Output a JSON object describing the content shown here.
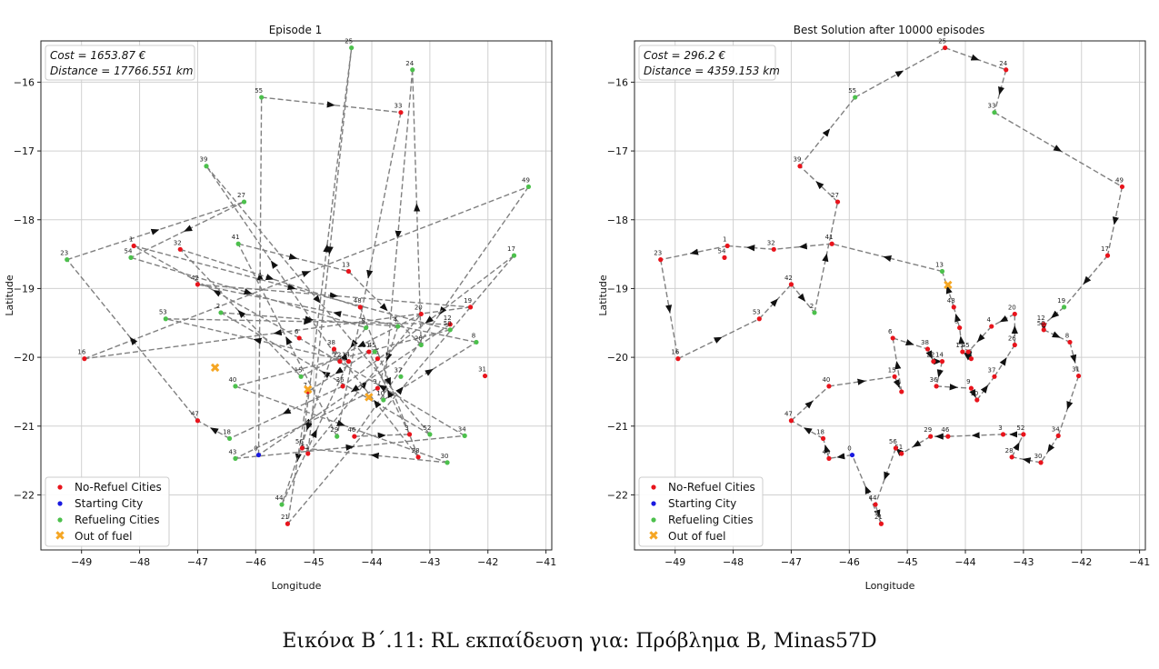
{
  "caption": "Εικόνα Β΄.11: RL εκπαίδευση για: Πρόβλημα Β, Minas57D",
  "colors": {
    "no_refuel": "#e8141c",
    "start": "#1a1ae0",
    "refuel": "#4cc04c",
    "out_of_fuel": "#f5a623",
    "route": "#808080"
  },
  "chart_data": [
    {
      "type": "scatter",
      "title": "Episode 1",
      "xlabel": "Longitude",
      "ylabel": "Latitude",
      "xlim": [
        -49.7,
        -40.9
      ],
      "ylim": [
        -22.8,
        -15.4
      ],
      "xticks": [
        -49,
        -48,
        -47,
        -46,
        -45,
        -44,
        -43,
        -42,
        -41
      ],
      "yticks": [
        -16,
        -17,
        -18,
        -19,
        -20,
        -21,
        -22
      ],
      "grid": true,
      "info": [
        "Cost = 1653.87 €",
        "Distance = 17766.551 km"
      ],
      "legend": {
        "placement": "lower-left",
        "entries": [
          "No-Refuel Cities",
          "Starting City",
          "Refueling Cities",
          "Out of fuel"
        ]
      },
      "nodes": [
        {
          "id": "0",
          "x": -45.95,
          "y": -21.42,
          "kind": "start"
        },
        {
          "id": "1",
          "x": -48.1,
          "y": -18.38,
          "kind": "no_refuel"
        },
        {
          "id": "2",
          "x": -46.6,
          "y": -19.35,
          "kind": "refuel"
        },
        {
          "id": "3",
          "x": -43.35,
          "y": -21.12,
          "kind": "no_refuel"
        },
        {
          "id": "4",
          "x": -43.55,
          "y": -19.55,
          "kind": "refuel"
        },
        {
          "id": "5",
          "x": -44.1,
          "y": -19.57,
          "kind": "refuel"
        },
        {
          "id": "6",
          "x": -45.25,
          "y": -19.72,
          "kind": "no_refuel"
        },
        {
          "id": "7",
          "x": -45.1,
          "y": -20.5,
          "kind": "no_refuel"
        },
        {
          "id": "8",
          "x": -42.2,
          "y": -19.78,
          "kind": "refuel"
        },
        {
          "id": "9",
          "x": -43.9,
          "y": -20.45,
          "kind": "no_refuel"
        },
        {
          "id": "10",
          "x": -43.8,
          "y": -20.62,
          "kind": "refuel"
        },
        {
          "id": "11",
          "x": -44.05,
          "y": -19.92,
          "kind": "no_refuel"
        },
        {
          "id": "12",
          "x": -42.65,
          "y": -19.52,
          "kind": "no_refuel"
        },
        {
          "id": "13",
          "x": -44.4,
          "y": -18.75,
          "kind": "no_refuel"
        },
        {
          "id": "14",
          "x": -44.4,
          "y": -20.06,
          "kind": "no_refuel"
        },
        {
          "id": "15",
          "x": -45.22,
          "y": -20.28,
          "kind": "refuel"
        },
        {
          "id": "16",
          "x": -48.95,
          "y": -20.02,
          "kind": "no_refuel"
        },
        {
          "id": "17",
          "x": -41.55,
          "y": -18.52,
          "kind": "refuel"
        },
        {
          "id": "18",
          "x": -46.45,
          "y": -21.18,
          "kind": "refuel"
        },
        {
          "id": "19",
          "x": -42.3,
          "y": -19.27,
          "kind": "no_refuel"
        },
        {
          "id": "20",
          "x": -43.15,
          "y": -19.37,
          "kind": "no_refuel"
        },
        {
          "id": "21",
          "x": -45.45,
          "y": -22.42,
          "kind": "no_refuel"
        },
        {
          "id": "22",
          "x": -44.55,
          "y": -20.06,
          "kind": "no_refuel"
        },
        {
          "id": "23",
          "x": -49.25,
          "y": -18.58,
          "kind": "refuel"
        },
        {
          "id": "24",
          "x": -43.3,
          "y": -15.82,
          "kind": "refuel"
        },
        {
          "id": "25",
          "x": -44.35,
          "y": -15.5,
          "kind": "refuel"
        },
        {
          "id": "26",
          "x": -43.15,
          "y": -19.82,
          "kind": "refuel"
        },
        {
          "id": "27",
          "x": -46.2,
          "y": -17.74,
          "kind": "refuel"
        },
        {
          "id": "28",
          "x": -43.2,
          "y": -21.45,
          "kind": "no_refuel"
        },
        {
          "id": "29",
          "x": -44.6,
          "y": -21.15,
          "kind": "refuel"
        },
        {
          "id": "30",
          "x": -42.7,
          "y": -21.53,
          "kind": "refuel"
        },
        {
          "id": "31",
          "x": -42.05,
          "y": -20.27,
          "kind": "no_refuel"
        },
        {
          "id": "32",
          "x": -47.3,
          "y": -18.43,
          "kind": "no_refuel"
        },
        {
          "id": "33",
          "x": -43.5,
          "y": -16.44,
          "kind": "no_refuel"
        },
        {
          "id": "34",
          "x": -42.4,
          "y": -21.14,
          "kind": "refuel"
        },
        {
          "id": "35",
          "x": -43.9,
          "y": -20.02,
          "kind": "no_refuel"
        },
        {
          "id": "36",
          "x": -44.5,
          "y": -20.42,
          "kind": "no_refuel"
        },
        {
          "id": "37",
          "x": -43.5,
          "y": -20.28,
          "kind": "refuel"
        },
        {
          "id": "38",
          "x": -44.65,
          "y": -19.88,
          "kind": "no_refuel"
        },
        {
          "id": "39",
          "x": -46.85,
          "y": -17.22,
          "kind": "refuel"
        },
        {
          "id": "40",
          "x": -46.35,
          "y": -20.42,
          "kind": "refuel"
        },
        {
          "id": "41",
          "x": -46.3,
          "y": -18.35,
          "kind": "refuel"
        },
        {
          "id": "42",
          "x": -47.0,
          "y": -18.94,
          "kind": "no_refuel"
        },
        {
          "id": "43",
          "x": -46.35,
          "y": -21.47,
          "kind": "refuel"
        },
        {
          "id": "44",
          "x": -45.55,
          "y": -22.14,
          "kind": "refuel"
        },
        {
          "id": "45",
          "x": -43.95,
          "y": -19.92,
          "kind": "refuel"
        },
        {
          "id": "46",
          "x": -44.3,
          "y": -21.15,
          "kind": "no_refuel"
        },
        {
          "id": "47",
          "x": -47.0,
          "y": -20.92,
          "kind": "no_refuel"
        },
        {
          "id": "48",
          "x": -44.2,
          "y": -19.27,
          "kind": "no_refuel"
        },
        {
          "id": "49",
          "x": -41.3,
          "y": -17.52,
          "kind": "refuel"
        },
        {
          "id": "50",
          "x": -42.65,
          "y": -19.6,
          "kind": "refuel"
        },
        {
          "id": "51",
          "x": -45.1,
          "y": -21.4,
          "kind": "no_refuel"
        },
        {
          "id": "52",
          "x": -43.0,
          "y": -21.12,
          "kind": "refuel"
        },
        {
          "id": "53",
          "x": -47.55,
          "y": -19.44,
          "kind": "refuel"
        },
        {
          "id": "54",
          "x": -48.15,
          "y": -18.55,
          "kind": "refuel"
        },
        {
          "id": "55",
          "x": -45.9,
          "y": -16.22,
          "kind": "refuel"
        },
        {
          "id": "56",
          "x": -45.2,
          "y": -21.32,
          "kind": "no_refuel"
        }
      ],
      "out_of_fuel": [
        {
          "x": -46.7,
          "y": -20.15
        },
        {
          "x": -45.1,
          "y": -20.47
        },
        {
          "x": -44.05,
          "y": -20.58
        }
      ],
      "route": [
        "0",
        "55",
        "33",
        "29",
        "41",
        "13",
        "26",
        "24",
        "10",
        "8",
        "42",
        "19",
        "16",
        "49",
        "46",
        "3",
        "11",
        "7",
        "21",
        "17",
        "36",
        "18",
        "47",
        "23",
        "27",
        "54",
        "5",
        "22",
        "39",
        "52",
        "2",
        "4",
        "9",
        "43",
        "34",
        "6",
        "1",
        "50",
        "40",
        "30",
        "56",
        "25",
        "51",
        "20",
        "15",
        "32",
        "48",
        "28",
        "38",
        "44",
        "14",
        "53",
        "12",
        "0"
      ]
    },
    {
      "type": "scatter",
      "title": "Best Solution after 10000 episodes",
      "xlabel": "Longitude",
      "ylabel": "Latitude",
      "xlim": [
        -49.7,
        -40.9
      ],
      "ylim": [
        -22.8,
        -15.4
      ],
      "xticks": [
        -49,
        -48,
        -47,
        -46,
        -45,
        -44,
        -43,
        -42,
        -41
      ],
      "yticks": [
        -16,
        -17,
        -18,
        -19,
        -20,
        -21,
        -22
      ],
      "grid": true,
      "info": [
        "Cost = 296.2 €",
        "Distance = 4359.153 km"
      ],
      "legend": {
        "placement": "lower-left",
        "entries": [
          "No-Refuel Cities",
          "Starting City",
          "Refueling Cities",
          "Out of fuel"
        ]
      },
      "nodes": [
        {
          "id": "0",
          "x": -45.95,
          "y": -21.42,
          "kind": "start"
        },
        {
          "id": "1",
          "x": -48.1,
          "y": -18.38,
          "kind": "no_refuel"
        },
        {
          "id": "2",
          "x": -46.6,
          "y": -19.35,
          "kind": "refuel"
        },
        {
          "id": "3",
          "x": -43.35,
          "y": -21.12,
          "kind": "no_refuel"
        },
        {
          "id": "4",
          "x": -43.55,
          "y": -19.55,
          "kind": "no_refuel"
        },
        {
          "id": "5",
          "x": -44.1,
          "y": -19.57,
          "kind": "no_refuel"
        },
        {
          "id": "6",
          "x": -45.25,
          "y": -19.72,
          "kind": "no_refuel"
        },
        {
          "id": "7",
          "x": -45.1,
          "y": -20.5,
          "kind": "no_refuel"
        },
        {
          "id": "8",
          "x": -42.2,
          "y": -19.78,
          "kind": "no_refuel"
        },
        {
          "id": "9",
          "x": -43.9,
          "y": -20.45,
          "kind": "no_refuel"
        },
        {
          "id": "10",
          "x": -43.8,
          "y": -20.62,
          "kind": "no_refuel"
        },
        {
          "id": "11",
          "x": -44.05,
          "y": -19.92,
          "kind": "no_refuel"
        },
        {
          "id": "12",
          "x": -42.65,
          "y": -19.52,
          "kind": "no_refuel"
        },
        {
          "id": "13",
          "x": -44.4,
          "y": -18.75,
          "kind": "refuel"
        },
        {
          "id": "14",
          "x": -44.4,
          "y": -20.06,
          "kind": "no_refuel"
        },
        {
          "id": "15",
          "x": -45.22,
          "y": -20.28,
          "kind": "no_refuel"
        },
        {
          "id": "16",
          "x": -48.95,
          "y": -20.02,
          "kind": "no_refuel"
        },
        {
          "id": "17",
          "x": -41.55,
          "y": -18.52,
          "kind": "no_refuel"
        },
        {
          "id": "18",
          "x": -46.45,
          "y": -21.18,
          "kind": "no_refuel"
        },
        {
          "id": "19",
          "x": -42.3,
          "y": -19.27,
          "kind": "refuel"
        },
        {
          "id": "20",
          "x": -43.15,
          "y": -19.37,
          "kind": "no_refuel"
        },
        {
          "id": "21",
          "x": -45.45,
          "y": -22.42,
          "kind": "no_refuel"
        },
        {
          "id": "22",
          "x": -44.55,
          "y": -20.06,
          "kind": "no_refuel"
        },
        {
          "id": "23",
          "x": -49.25,
          "y": -18.58,
          "kind": "no_refuel"
        },
        {
          "id": "24",
          "x": -43.3,
          "y": -15.82,
          "kind": "no_refuel"
        },
        {
          "id": "25",
          "x": -44.35,
          "y": -15.5,
          "kind": "no_refuel"
        },
        {
          "id": "26",
          "x": -43.15,
          "y": -19.82,
          "kind": "no_refuel"
        },
        {
          "id": "27",
          "x": -46.2,
          "y": -17.74,
          "kind": "no_refuel"
        },
        {
          "id": "28",
          "x": -43.2,
          "y": -21.45,
          "kind": "no_refuel"
        },
        {
          "id": "29",
          "x": -44.6,
          "y": -21.15,
          "kind": "no_refuel"
        },
        {
          "id": "30",
          "x": -42.7,
          "y": -21.53,
          "kind": "no_refuel"
        },
        {
          "id": "31",
          "x": -42.05,
          "y": -20.27,
          "kind": "no_refuel"
        },
        {
          "id": "32",
          "x": -47.3,
          "y": -18.43,
          "kind": "no_refuel"
        },
        {
          "id": "33",
          "x": -43.5,
          "y": -16.44,
          "kind": "refuel"
        },
        {
          "id": "34",
          "x": -42.4,
          "y": -21.14,
          "kind": "no_refuel"
        },
        {
          "id": "35",
          "x": -43.9,
          "y": -20.02,
          "kind": "no_refuel"
        },
        {
          "id": "36",
          "x": -44.5,
          "y": -20.42,
          "kind": "no_refuel"
        },
        {
          "id": "37",
          "x": -43.5,
          "y": -20.28,
          "kind": "no_refuel"
        },
        {
          "id": "38",
          "x": -44.65,
          "y": -19.88,
          "kind": "no_refuel"
        },
        {
          "id": "39",
          "x": -46.85,
          "y": -17.22,
          "kind": "no_refuel"
        },
        {
          "id": "40",
          "x": -46.35,
          "y": -20.42,
          "kind": "no_refuel"
        },
        {
          "id": "41",
          "x": -46.3,
          "y": -18.35,
          "kind": "no_refuel"
        },
        {
          "id": "42",
          "x": -47.0,
          "y": -18.94,
          "kind": "no_refuel"
        },
        {
          "id": "43",
          "x": -46.35,
          "y": -21.47,
          "kind": "no_refuel"
        },
        {
          "id": "44",
          "x": -45.55,
          "y": -22.14,
          "kind": "no_refuel"
        },
        {
          "id": "45",
          "x": -43.95,
          "y": -19.92,
          "kind": "no_refuel"
        },
        {
          "id": "46",
          "x": -44.3,
          "y": -21.15,
          "kind": "no_refuel"
        },
        {
          "id": "47",
          "x": -47.0,
          "y": -20.92,
          "kind": "no_refuel"
        },
        {
          "id": "48",
          "x": -44.2,
          "y": -19.27,
          "kind": "no_refuel"
        },
        {
          "id": "49",
          "x": -41.3,
          "y": -17.52,
          "kind": "no_refuel"
        },
        {
          "id": "50",
          "x": -42.65,
          "y": -19.6,
          "kind": "no_refuel"
        },
        {
          "id": "51",
          "x": -45.1,
          "y": -21.4,
          "kind": "no_refuel"
        },
        {
          "id": "52",
          "x": -43.0,
          "y": -21.12,
          "kind": "no_refuel"
        },
        {
          "id": "53",
          "x": -47.55,
          "y": -19.44,
          "kind": "no_refuel"
        },
        {
          "id": "54",
          "x": -48.15,
          "y": -18.55,
          "kind": "no_refuel"
        },
        {
          "id": "55",
          "x": -45.9,
          "y": -16.22,
          "kind": "refuel"
        },
        {
          "id": "56",
          "x": -45.2,
          "y": -21.32,
          "kind": "no_refuel"
        }
      ],
      "out_of_fuel": [
        {
          "x": -44.3,
          "y": -18.95
        }
      ],
      "route": [
        "0",
        "43",
        "18",
        "47",
        "40",
        "15",
        "7",
        "6",
        "38",
        "22",
        "14",
        "36",
        "9",
        "10",
        "37",
        "26",
        "20",
        "4",
        "45",
        "35",
        "11",
        "5",
        "48",
        "13",
        "41",
        "32",
        "1",
        "23",
        "16",
        "53",
        "42",
        "2",
        "27",
        "39",
        "55",
        "25",
        "24",
        "33",
        "49",
        "17",
        "19",
        "12",
        "50",
        "8",
        "31",
        "34",
        "30",
        "28",
        "52",
        "3",
        "46",
        "29",
        "51",
        "56",
        "44",
        "21",
        "0"
      ]
    }
  ]
}
